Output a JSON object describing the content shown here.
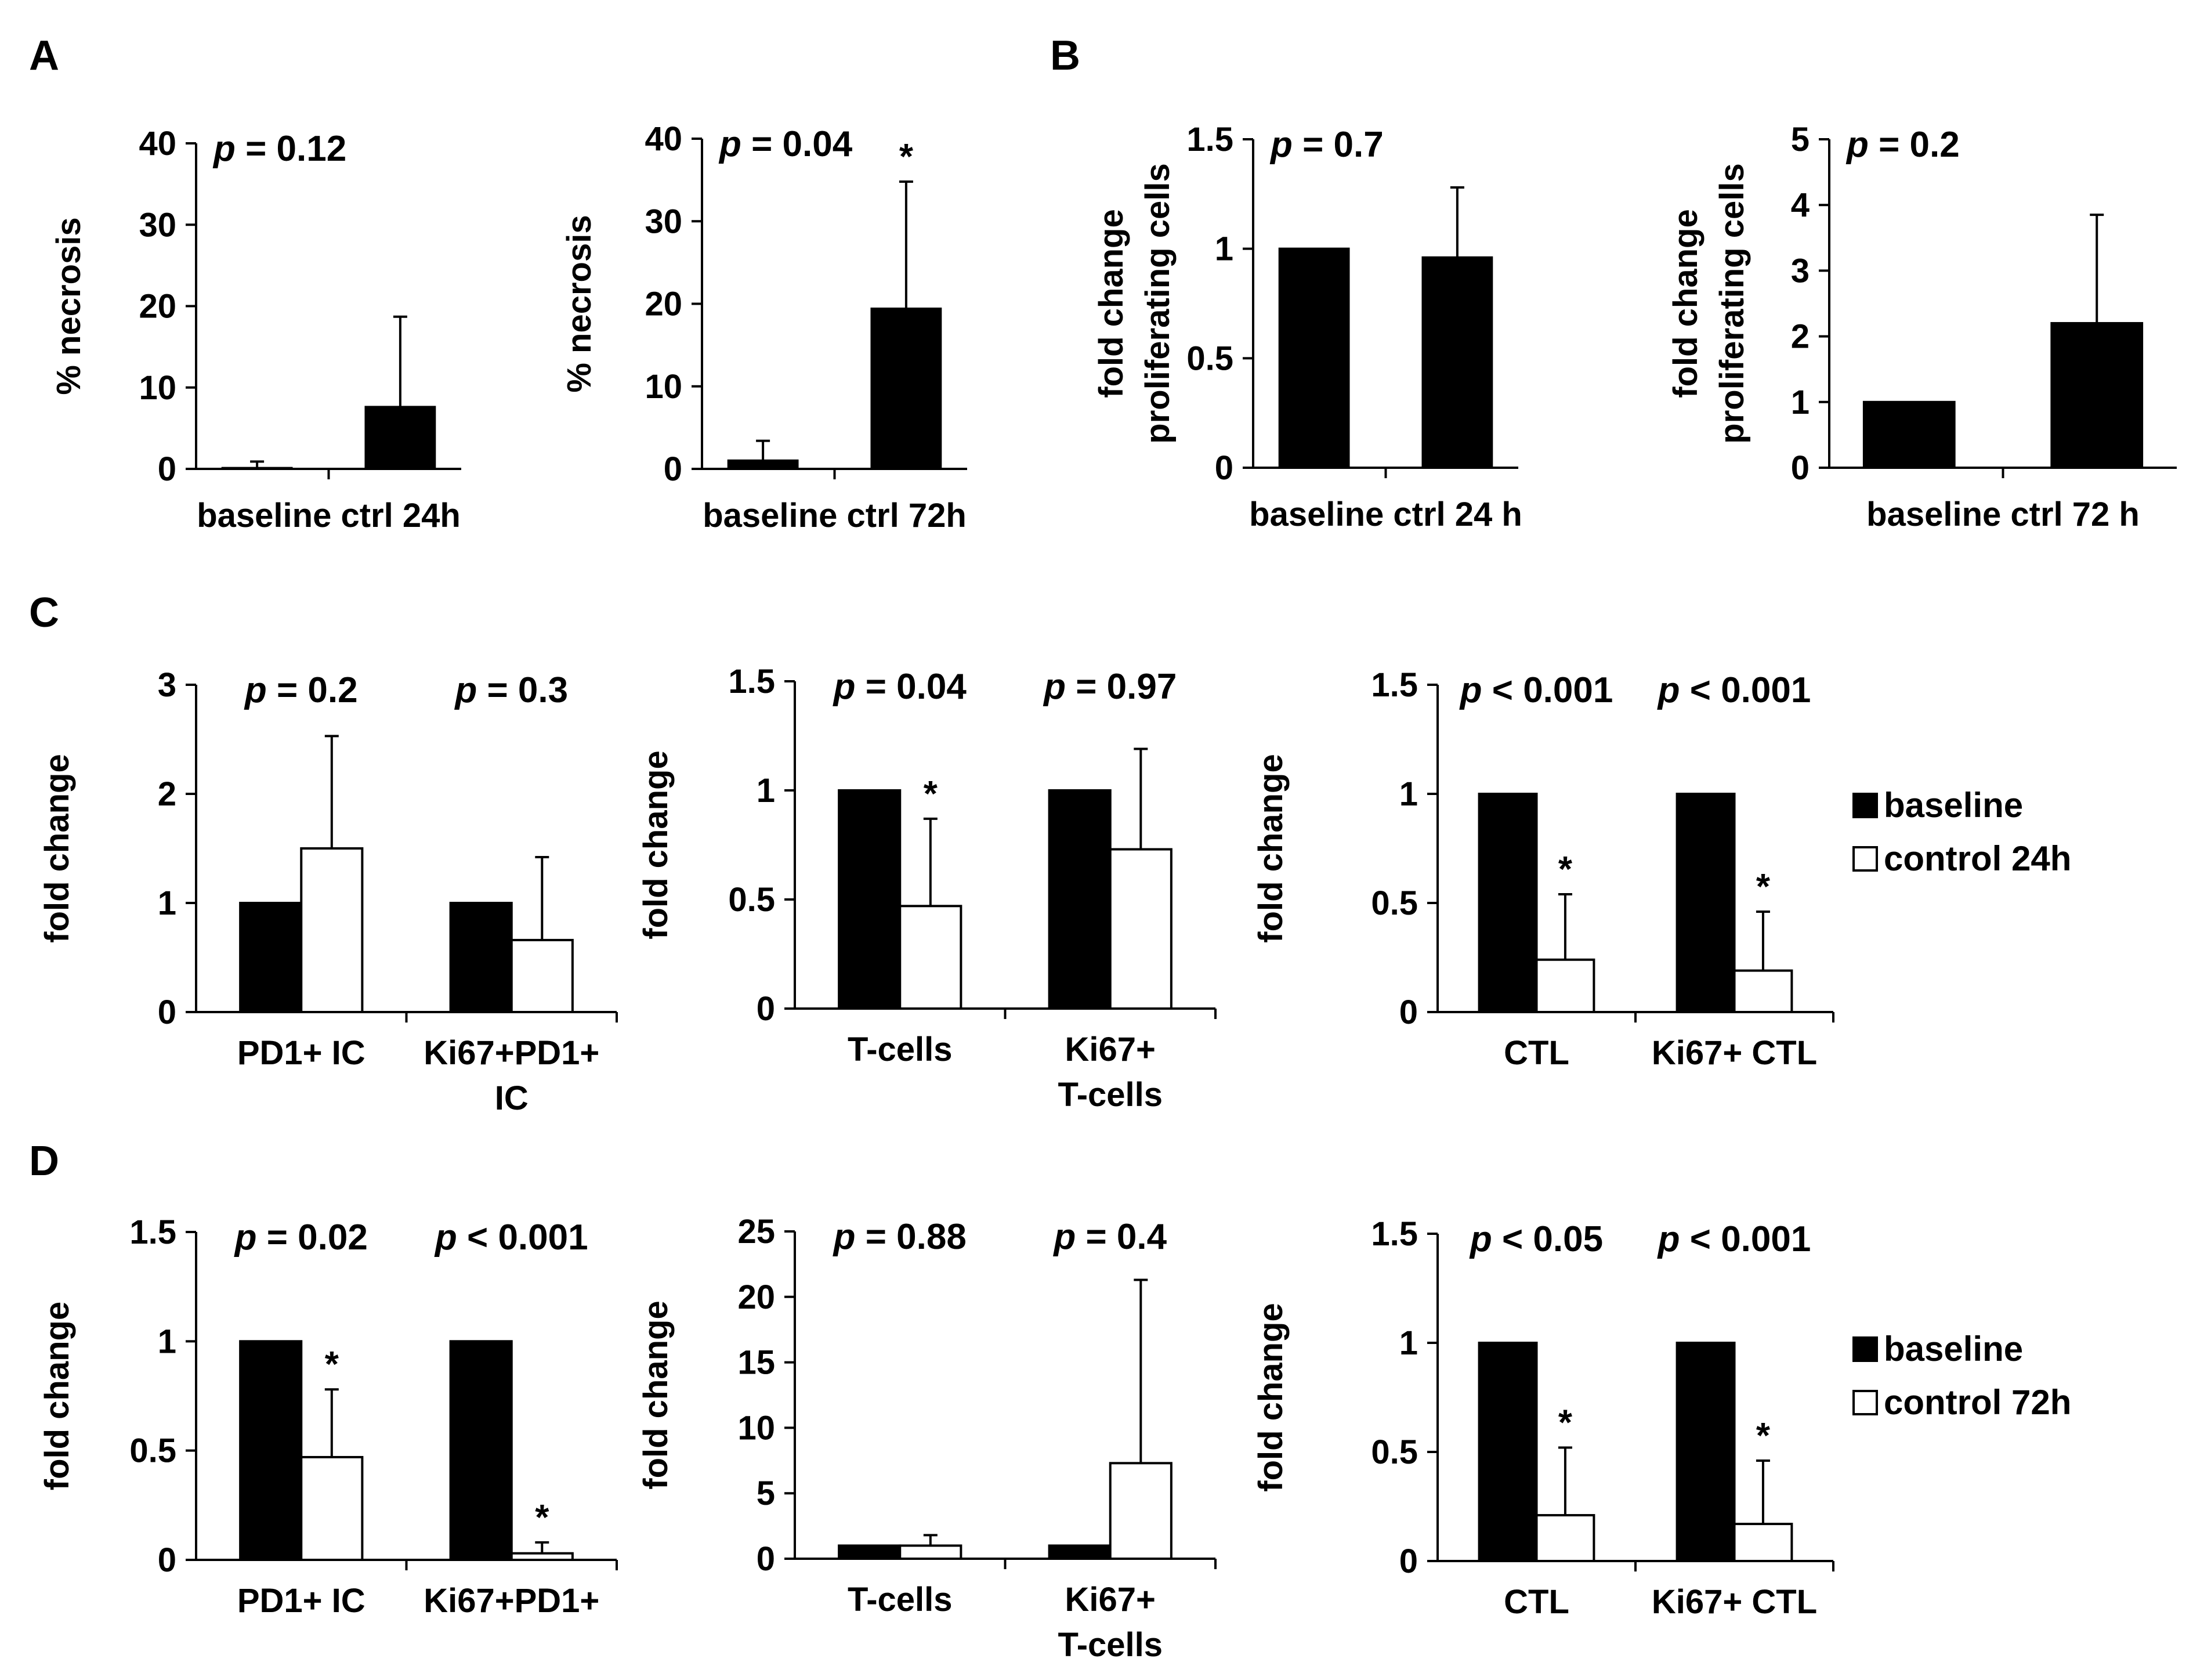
{
  "panel_labels": [
    "A",
    "B",
    "C",
    "D"
  ],
  "legends": [
    {
      "entries": [
        {
          "name": "baseline",
          "fill": "#000000"
        },
        {
          "name": "control 24h",
          "fill": "#ffffff"
        }
      ]
    },
    {
      "entries": [
        {
          "name": "baseline",
          "fill": "#000000"
        },
        {
          "name": "control 72h",
          "fill": "#ffffff"
        }
      ]
    }
  ],
  "chart_data": [
    {
      "id": "A1",
      "panel": "A",
      "type": "bar",
      "ylabel": [
        "% necrosis"
      ],
      "ylim": [
        0,
        40
      ],
      "yticks": [
        "0",
        "10",
        "20",
        "30",
        "40"
      ],
      "categories": [
        "baseline ctrl 24h"
      ],
      "bars": [
        {
          "value": 0.1,
          "err": 0.8,
          "fill": "#000000",
          "star": false
        },
        {
          "value": 7.6,
          "err": 11.1,
          "fill": "#000000",
          "star": false
        }
      ],
      "pvalues": [
        {
          "prefix": "p",
          "rest": " = 0.12"
        }
      ]
    },
    {
      "id": "A2",
      "panel": "A",
      "type": "bar",
      "ylabel": [
        "% necrosis"
      ],
      "ylim": [
        0,
        40
      ],
      "yticks": [
        "0",
        "10",
        "20",
        "30",
        "40"
      ],
      "categories": [
        "baseline ctrl 72h"
      ],
      "bars": [
        {
          "value": 1.0,
          "err": 2.4,
          "fill": "#000000",
          "star": false
        },
        {
          "value": 19.4,
          "err": 15.4,
          "fill": "#000000",
          "star": true
        }
      ],
      "pvalues": [
        {
          "prefix": "p",
          "rest": " = 0.04"
        }
      ]
    },
    {
      "id": "B1",
      "panel": "B",
      "type": "bar",
      "ylabel": [
        "fold change",
        "proliferating cells"
      ],
      "ylim": [
        0,
        1.5
      ],
      "yticks": [
        "0",
        "0.5",
        "1",
        "1.5"
      ],
      "categories": [
        "baseline  ctrl 24 h"
      ],
      "bars": [
        {
          "value": 1.0,
          "err": 0.0,
          "fill": "#000000",
          "star": false
        },
        {
          "value": 0.96,
          "err": 0.32,
          "fill": "#000000",
          "star": false
        }
      ],
      "pvalues": [
        {
          "prefix": "p",
          "rest": " = 0.7"
        }
      ]
    },
    {
      "id": "B2",
      "panel": "B",
      "type": "bar",
      "ylabel": [
        "fold change",
        "proliferating cells"
      ],
      "ylim": [
        0,
        5
      ],
      "yticks": [
        "0",
        "1",
        "2",
        "3",
        "4",
        "5"
      ],
      "categories": [
        "baseline ctrl 72 h"
      ],
      "bars": [
        {
          "value": 1.0,
          "err": 0.0,
          "fill": "#000000",
          "star": false
        },
        {
          "value": 2.2,
          "err": 1.65,
          "fill": "#000000",
          "star": false
        }
      ],
      "pvalues": [
        {
          "prefix": "p",
          "rest": " = 0.2"
        }
      ]
    },
    {
      "id": "C1",
      "panel": "C",
      "type": "bar",
      "ylabel": [
        "fold change"
      ],
      "ylim": [
        0,
        3
      ],
      "yticks": [
        "0",
        "1",
        "2",
        "3"
      ],
      "categories": [
        "PD1+ IC",
        "Ki67+PD1+|IC"
      ],
      "bars": [
        {
          "value": 1.0,
          "err": 0,
          "fill": "#000000",
          "star": false
        },
        {
          "value": 1.5,
          "err": 1.03,
          "fill": "#ffffff",
          "star": false
        },
        {
          "value": 1.0,
          "err": 0,
          "fill": "#000000",
          "star": false
        },
        {
          "value": 0.66,
          "err": 0.76,
          "fill": "#ffffff",
          "star": false
        }
      ],
      "pvalues": [
        {
          "prefix": "p",
          "rest": " = 0.2"
        },
        {
          "prefix": "p",
          "rest": " = 0.3"
        }
      ]
    },
    {
      "id": "C2",
      "panel": "C",
      "type": "bar",
      "ylabel": [
        "fold change"
      ],
      "ylim": [
        0,
        1.5
      ],
      "yticks": [
        "0",
        "0.5",
        "1",
        "1.5"
      ],
      "categories": [
        "T-cells",
        "Ki67+|T-cells"
      ],
      "bars": [
        {
          "value": 1.0,
          "err": 0,
          "fill": "#000000",
          "star": false
        },
        {
          "value": 0.47,
          "err": 0.4,
          "fill": "#ffffff",
          "star": true
        },
        {
          "value": 1.0,
          "err": 0,
          "fill": "#000000",
          "star": false
        },
        {
          "value": 0.73,
          "err": 0.46,
          "fill": "#ffffff",
          "star": false
        }
      ],
      "pvalues": [
        {
          "prefix": "p",
          "rest": " = 0.04"
        },
        {
          "prefix": "p",
          "rest": " = 0.97"
        }
      ]
    },
    {
      "id": "C3",
      "panel": "C",
      "type": "bar",
      "ylabel": [
        "fold change"
      ],
      "ylim": [
        0,
        1.5
      ],
      "yticks": [
        "0",
        "0.5",
        "1",
        "1.5"
      ],
      "categories": [
        "CTL",
        "Ki67+ CTL"
      ],
      "bars": [
        {
          "value": 1.0,
          "err": 0,
          "fill": "#000000",
          "star": false
        },
        {
          "value": 0.24,
          "err": 0.3,
          "fill": "#ffffff",
          "star": true
        },
        {
          "value": 1.0,
          "err": 0,
          "fill": "#000000",
          "star": false
        },
        {
          "value": 0.19,
          "err": 0.27,
          "fill": "#ffffff",
          "star": true
        }
      ],
      "pvalues": [
        {
          "prefix": "p",
          "rest": " < 0.001"
        },
        {
          "prefix": "p",
          "rest": " < 0.001"
        }
      ]
    },
    {
      "id": "D1",
      "panel": "D",
      "type": "bar",
      "ylabel": [
        "fold change"
      ],
      "ylim": [
        0,
        1.5
      ],
      "yticks": [
        "0",
        "0.5",
        "1",
        "1.5"
      ],
      "categories": [
        "PD1+ IC",
        "Ki67+PD1+"
      ],
      "bars": [
        {
          "value": 1.0,
          "err": 0,
          "fill": "#000000",
          "star": false
        },
        {
          "value": 0.47,
          "err": 0.31,
          "fill": "#ffffff",
          "star": true
        },
        {
          "value": 1.0,
          "err": 0,
          "fill": "#000000",
          "star": false
        },
        {
          "value": 0.03,
          "err": 0.05,
          "fill": "#ffffff",
          "star": true
        }
      ],
      "pvalues": [
        {
          "prefix": "p",
          "rest": " = 0.02"
        },
        {
          "prefix": "p",
          "rest": " < 0.001"
        }
      ]
    },
    {
      "id": "D2",
      "panel": "D",
      "type": "bar",
      "ylabel": [
        "fold change"
      ],
      "ylim": [
        0,
        25
      ],
      "yticks": [
        "0",
        "5",
        "10",
        "15",
        "20",
        "25"
      ],
      "categories": [
        "T-cells",
        "Ki67+|T-cells"
      ],
      "bars": [
        {
          "value": 1.0,
          "err": 0,
          "fill": "#000000",
          "star": false
        },
        {
          "value": 1.0,
          "err": 0.8,
          "fill": "#ffffff",
          "star": false
        },
        {
          "value": 1.0,
          "err": 0,
          "fill": "#000000",
          "star": false
        },
        {
          "value": 7.3,
          "err": 14.0,
          "fill": "#ffffff",
          "star": false
        }
      ],
      "pvalues": [
        {
          "prefix": "p",
          "rest": " = 0.88"
        },
        {
          "prefix": "p",
          "rest": " = 0.4"
        }
      ]
    },
    {
      "id": "D3",
      "panel": "D",
      "type": "bar",
      "ylabel": [
        "fold change"
      ],
      "ylim": [
        0,
        1.5
      ],
      "yticks": [
        "0",
        "0.5",
        "1",
        "1.5"
      ],
      "categories": [
        "CTL",
        "Ki67+ CTL"
      ],
      "bars": [
        {
          "value": 1.0,
          "err": 0,
          "fill": "#000000",
          "star": false
        },
        {
          "value": 0.21,
          "err": 0.31,
          "fill": "#ffffff",
          "star": true
        },
        {
          "value": 1.0,
          "err": 0,
          "fill": "#000000",
          "star": false
        },
        {
          "value": 0.17,
          "err": 0.29,
          "fill": "#ffffff",
          "star": true
        }
      ],
      "pvalues": [
        {
          "prefix": "p",
          "rest": " < 0.05"
        },
        {
          "prefix": "p",
          "rest": " < 0.001"
        }
      ]
    }
  ]
}
